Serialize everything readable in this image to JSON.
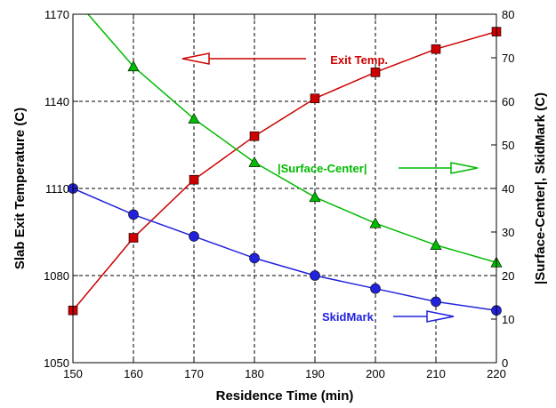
{
  "chart_data": {
    "type": "line",
    "title": "",
    "xlabel": "Residence Time (min)",
    "ylabel_left": "Slab Exit Temperature (C)",
    "ylabel_right": "|Surface-Center|, SkidMark (C)",
    "xlim": [
      150,
      220
    ],
    "ylim_left": [
      1050,
      1170
    ],
    "ylim_right": [
      0,
      80
    ],
    "x_ticks": [
      150,
      160,
      170,
      180,
      190,
      200,
      210,
      220
    ],
    "y_left_ticks": [
      1050,
      1080,
      1110,
      1140,
      1170
    ],
    "y_right_ticks": [
      0,
      10,
      20,
      30,
      40,
      50,
      60,
      70,
      80
    ],
    "grid": true,
    "series": [
      {
        "name": "Exit Temp.",
        "axis": "left",
        "marker": "square",
        "color": "#cc0000",
        "x": [
          150,
          160,
          170,
          180,
          190,
          200,
          210,
          220
        ],
        "y": [
          1068,
          1093,
          1113,
          1128,
          1141,
          1150,
          1158,
          1164
        ]
      },
      {
        "name": "|Surface-Center|",
        "axis": "right",
        "marker": "triangle",
        "color": "#00bb00",
        "x": [
          150,
          160,
          170,
          180,
          190,
          200,
          210,
          220
        ],
        "y": [
          84,
          68,
          56,
          46,
          38,
          32,
          27,
          23
        ]
      },
      {
        "name": "SkidMark",
        "axis": "right",
        "marker": "circle",
        "color": "#2222dd",
        "x": [
          150,
          160,
          170,
          180,
          190,
          200,
          210,
          220
        ],
        "y": [
          40,
          34,
          29,
          24,
          20,
          17,
          14,
          12
        ]
      }
    ],
    "annotations": [
      {
        "series": 0,
        "text": "Exit Temp."
      },
      {
        "series": 1,
        "text": "|Surface-Center|"
      },
      {
        "series": 2,
        "text": "SkidMark"
      }
    ]
  }
}
